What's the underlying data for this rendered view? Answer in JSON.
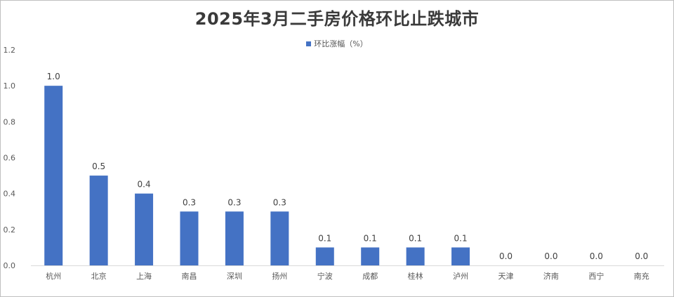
{
  "chart_data": {
    "type": "bar",
    "title": "2025年3月二手房价格环比止跌城市",
    "categories": [
      "杭州",
      "北京",
      "上海",
      "南昌",
      "深圳",
      "扬州",
      "宁波",
      "成都",
      "桂林",
      "泸州",
      "天津",
      "济南",
      "西宁",
      "南充"
    ],
    "series": [
      {
        "name": "环比涨幅（%）",
        "values": [
          1.0,
          0.5,
          0.4,
          0.3,
          0.3,
          0.3,
          0.1,
          0.1,
          0.1,
          0.1,
          0.0,
          0.0,
          0.0,
          0.0
        ]
      }
    ],
    "data_labels": [
      "1.0",
      "0.5",
      "0.4",
      "0.3",
      "0.3",
      "0.3",
      "0.1",
      "0.1",
      "0.1",
      "0.1",
      "0.0",
      "0.0",
      "0.0",
      "0.0"
    ],
    "yticks": [
      "0.0",
      "0.2",
      "0.4",
      "0.6",
      "0.8",
      "1.0",
      "1.2"
    ],
    "ylim": [
      0,
      1.2
    ],
    "grid": false,
    "legend_position": "top-center",
    "bar_color": "#4472c4"
  }
}
